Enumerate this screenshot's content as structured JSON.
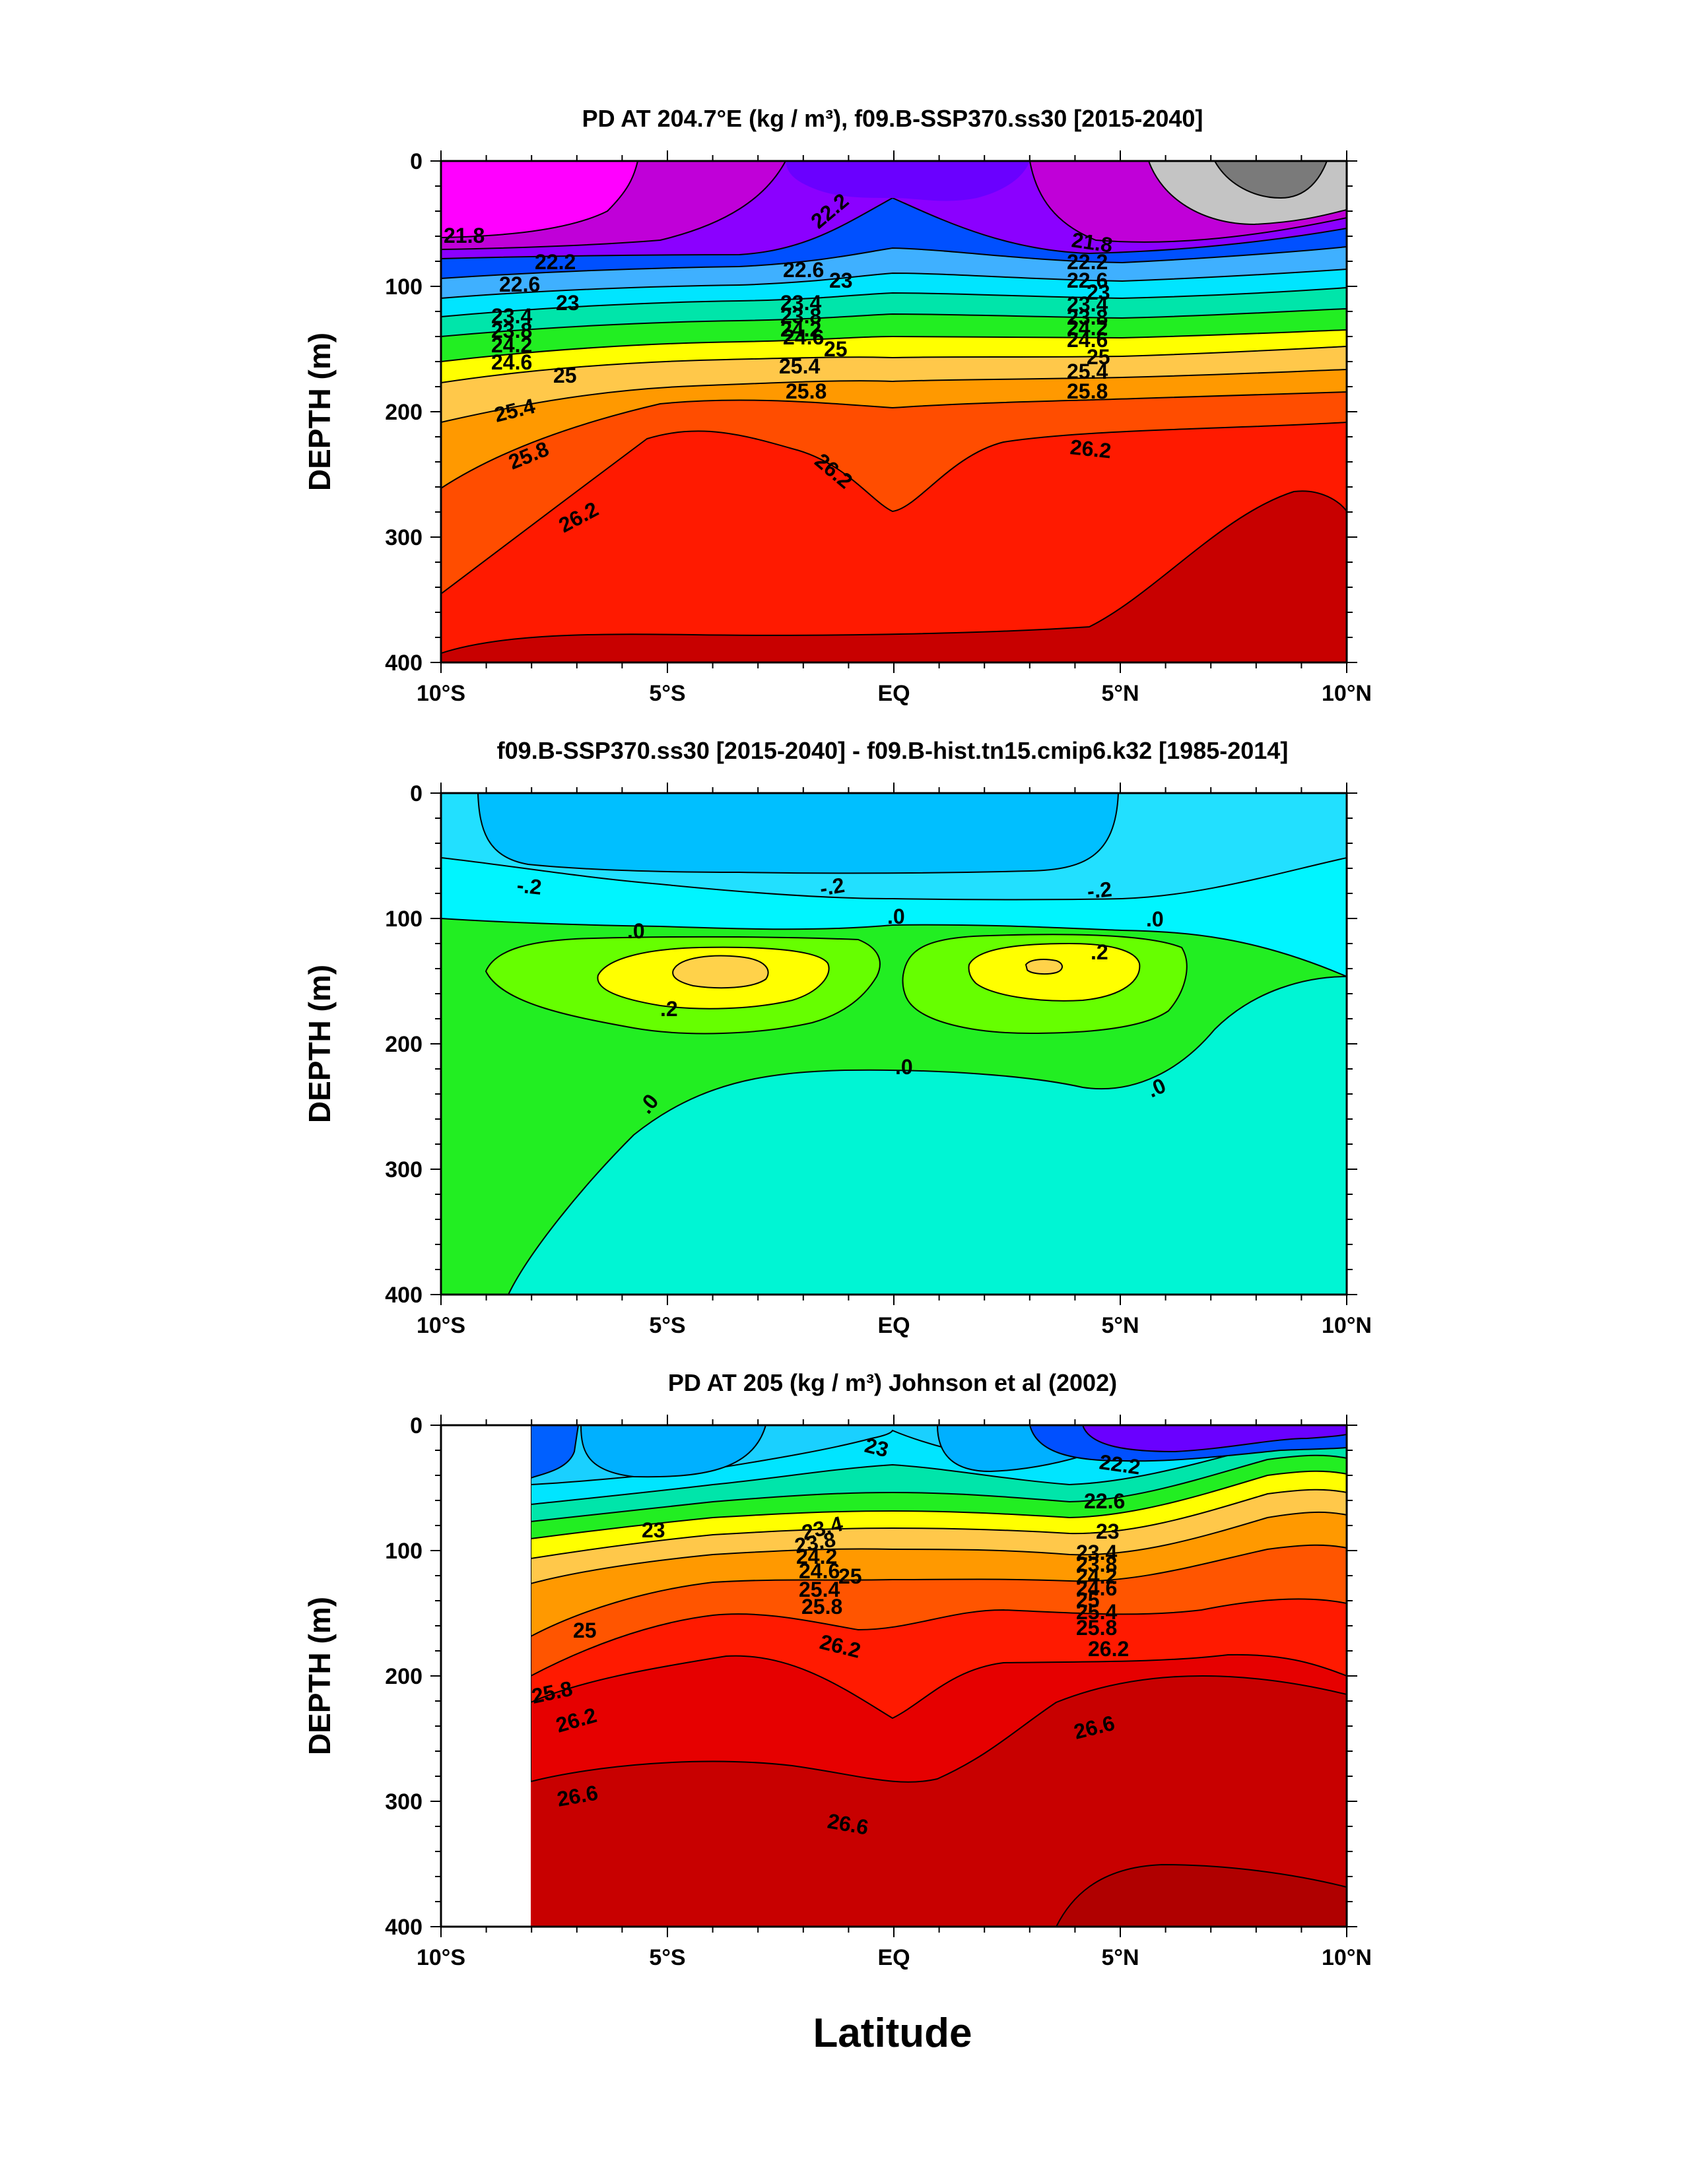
{
  "figure": {
    "xlabel": "Latitude",
    "colors": {
      "magenta": "#ff00ff",
      "purple": "#8b00ff",
      "blue": "#0050ff",
      "cyan": "#00e5ff",
      "green": "#22ee22",
      "yellow": "#ffff00",
      "orange": "#ff9900",
      "red": "#ff1a00",
      "darkred": "#c80000",
      "gray": "#9a9a9a"
    }
  },
  "chart_data": [
    {
      "type": "heatmap",
      "title": "PD AT 204.7°E (kg / m³), f09.B-SSP370.ss30 [2015-2040]",
      "ylabel": "DEPTH (m)",
      "xlim": [
        -10,
        10
      ],
      "ylim": [
        400,
        0
      ],
      "x_tick_labels": [
        "10°S",
        "5°S",
        "EQ",
        "5°N",
        "10°N"
      ],
      "y_tick_labels": [
        "0",
        "100",
        "200",
        "300",
        "400"
      ],
      "contour_labels": [
        "21.8",
        "22.2",
        "22.6",
        "23",
        "23.4",
        "23.8",
        "24.2",
        "24.6",
        "25",
        "25.4",
        "25.8",
        "26.2"
      ],
      "contour_isolines": [
        {
          "value": 21.8,
          "depth_at_lat": [
            [
              -10,
              63
            ],
            [
              -5,
              66
            ],
            [
              -2,
              80
            ],
            [
              0,
              40
            ],
            [
              2,
              78
            ],
            [
              5,
              68
            ],
            [
              10,
              55
            ]
          ]
        },
        {
          "value": 22.2,
          "depth_at_lat": [
            [
              -10,
              80
            ],
            [
              -5,
              84
            ],
            [
              -2,
              90
            ],
            [
              0,
              65
            ],
            [
              2,
              90
            ],
            [
              5,
              84
            ],
            [
              10,
              72
            ]
          ]
        },
        {
          "value": 22.6,
          "depth_at_lat": [
            [
              -10,
              98
            ],
            [
              -5,
              100
            ],
            [
              -2,
              100
            ],
            [
              0,
              85
            ],
            [
              2,
              100
            ],
            [
              5,
              96
            ],
            [
              10,
              88
            ]
          ]
        },
        {
          "value": 23,
          "depth_at_lat": [
            [
              -10,
              112
            ],
            [
              -5,
              112
            ],
            [
              -2,
              110
            ],
            [
              0,
              100
            ],
            [
              2,
              110
            ],
            [
              5,
              108
            ],
            [
              10,
              100
            ]
          ]
        },
        {
          "value": 23.4,
          "depth_at_lat": [
            [
              -10,
              125
            ],
            [
              -5,
              122
            ],
            [
              -2,
              120
            ],
            [
              0,
              112
            ],
            [
              2,
              120
            ],
            [
              5,
              118
            ],
            [
              10,
              110
            ]
          ]
        },
        {
          "value": 23.8,
          "depth_at_lat": [
            [
              -10,
              135
            ],
            [
              -5,
              130
            ],
            [
              -2,
              128
            ],
            [
              0,
              122
            ],
            [
              2,
              128
            ],
            [
              5,
              126
            ],
            [
              10,
              118
            ]
          ]
        },
        {
          "value": 24.2,
          "depth_at_lat": [
            [
              -10,
              145
            ],
            [
              -5,
              138
            ],
            [
              -2,
              135
            ],
            [
              0,
              130
            ],
            [
              2,
              136
            ],
            [
              5,
              134
            ],
            [
              10,
              126
            ]
          ]
        },
        {
          "value": 24.6,
          "depth_at_lat": [
            [
              -10,
              157
            ],
            [
              -5,
              147
            ],
            [
              -2,
              143
            ],
            [
              0,
              138
            ],
            [
              2,
              145
            ],
            [
              5,
              144
            ],
            [
              10,
              134
            ]
          ]
        },
        {
          "value": 25,
          "depth_at_lat": [
            [
              -10,
              170
            ],
            [
              -5,
              160
            ],
            [
              -2,
              152
            ],
            [
              0,
              150
            ],
            [
              2,
              156
            ],
            [
              5,
              156
            ],
            [
              10,
              145
            ]
          ]
        },
        {
          "value": 25.4,
          "depth_at_lat": [
            [
              -10,
              190
            ],
            [
              -5,
              175
            ],
            [
              -2,
              165
            ],
            [
              0,
              168
            ],
            [
              2,
              170
            ],
            [
              5,
              170
            ],
            [
              10,
              160
            ]
          ]
        },
        {
          "value": 25.8,
          "depth_at_lat": [
            [
              -10,
              230
            ],
            [
              -5,
              200
            ],
            [
              -2,
              185
            ],
            [
              0,
              192
            ],
            [
              2,
              190
            ],
            [
              5,
              188
            ],
            [
              10,
              178
            ]
          ]
        },
        {
          "value": 26.2,
          "depth_at_lat": [
            [
              -10,
              345
            ],
            [
              -7,
              290
            ],
            [
              -4,
              218
            ],
            [
              -2,
              225
            ],
            [
              0,
              278
            ],
            [
              2,
              235
            ],
            [
              5,
              230
            ],
            [
              10,
              210
            ]
          ]
        }
      ]
    },
    {
      "type": "heatmap",
      "title": "f09.B-SSP370.ss30 [2015-2040] - f09.B-hist.tn15.cmip6.k32 [1985-2014]",
      "ylabel": "DEPTH (m)",
      "xlim": [
        -10,
        10
      ],
      "ylim": [
        400,
        0
      ],
      "x_tick_labels": [
        "10°S",
        "5°S",
        "EQ",
        "5°N",
        "10°N"
      ],
      "y_tick_labels": [
        "0",
        "100",
        "200",
        "300",
        "400"
      ],
      "contour_labels": [
        "-.2",
        ".0",
        ".2"
      ],
      "features": [
        {
          "value": "-.2",
          "region": "upper layer",
          "depth_range": [
            0,
            100
          ]
        },
        {
          "value": ".2",
          "region": "south core",
          "center": [
            -4.5,
            155
          ]
        },
        {
          "value": ".2",
          "region": "north core",
          "center": [
            3.0,
            148
          ]
        },
        {
          "value": ".0",
          "region": "zero contour",
          "depth_at_lat": [
            [
              -10,
              100
            ],
            [
              -5,
              108
            ],
            [
              0,
              102
            ],
            [
              5,
              110
            ],
            [
              10,
              140
            ]
          ]
        }
      ]
    },
    {
      "type": "heatmap",
      "title": "PD AT 205 (kg / m³) Johnson et al (2002)",
      "ylabel": "DEPTH (m)",
      "xlim": [
        -10,
        10
      ],
      "ylim": [
        400,
        0
      ],
      "data_start_lat": -8,
      "x_tick_labels": [
        "10°S",
        "5°S",
        "EQ",
        "5°N",
        "10°N"
      ],
      "y_tick_labels": [
        "0",
        "100",
        "200",
        "300",
        "400"
      ],
      "contour_labels": [
        "22.2",
        "22.6",
        "23",
        "23.4",
        "23.8",
        "24.2",
        "24.6",
        "25",
        "25.4",
        "25.8",
        "26.2",
        "26.6"
      ],
      "contour_isolines": [
        {
          "value": 22.6,
          "depth_at_lat": [
            [
              -8,
              60
            ],
            [
              -4,
              45
            ],
            [
              0,
              20
            ],
            [
              2,
              45
            ],
            [
              4,
              55
            ],
            [
              6,
              40
            ],
            [
              8,
              25
            ],
            [
              10,
              20
            ]
          ]
        },
        {
          "value": 23,
          "depth_at_lat": [
            [
              -8,
              90
            ],
            [
              -4,
              75
            ],
            [
              0,
              55
            ],
            [
              2,
              70
            ],
            [
              4,
              78
            ],
            [
              6,
              55
            ],
            [
              8,
              40
            ],
            [
              10,
              35
            ]
          ]
        },
        {
          "value": 23.4,
          "depth_at_lat": [
            [
              -8,
              108
            ],
            [
              -4,
              98
            ],
            [
              0,
              85
            ],
            [
              2,
              95
            ],
            [
              4,
              100
            ],
            [
              6,
              75
            ],
            [
              8,
              55
            ],
            [
              10,
              50
            ]
          ]
        },
        {
          "value": 24.2,
          "depth_at_lat": [
            [
              -8,
              125
            ],
            [
              -4,
              118
            ],
            [
              0,
              110
            ],
            [
              2,
              118
            ],
            [
              4,
              120
            ],
            [
              6,
              100
            ],
            [
              8,
              80
            ],
            [
              10,
              78
            ]
          ]
        },
        {
          "value": 25,
          "depth_at_lat": [
            [
              -8,
              160
            ],
            [
              -4,
              140
            ],
            [
              0,
              138
            ],
            [
              2,
              140
            ],
            [
              4,
              145
            ],
            [
              6,
              130
            ],
            [
              8,
              115
            ],
            [
              10,
              110
            ]
          ]
        },
        {
          "value": 25.8,
          "depth_at_lat": [
            [
              -8,
              230
            ],
            [
              -4,
              172
            ],
            [
              0,
              165
            ],
            [
              2,
              165
            ],
            [
              4,
              168
            ],
            [
              6,
              155
            ],
            [
              8,
              140
            ],
            [
              10,
              140
            ]
          ]
        },
        {
          "value": 26.2,
          "depth_at_lat": [
            [
              -8,
              255
            ],
            [
              -4,
              205
            ],
            [
              -2,
              190
            ],
            [
              0,
              240
            ],
            [
              2,
              200
            ],
            [
              5,
              195
            ],
            [
              8,
              170
            ],
            [
              10,
              170
            ]
          ]
        },
        {
          "value": 26.6,
          "depth_at_lat": [
            [
              -8,
              290
            ],
            [
              -4,
              285
            ],
            [
              0,
              328
            ],
            [
              2,
              320
            ],
            [
              4,
              265
            ],
            [
              6,
              225
            ],
            [
              8,
              200
            ],
            [
              10,
              210
            ]
          ]
        }
      ]
    }
  ]
}
